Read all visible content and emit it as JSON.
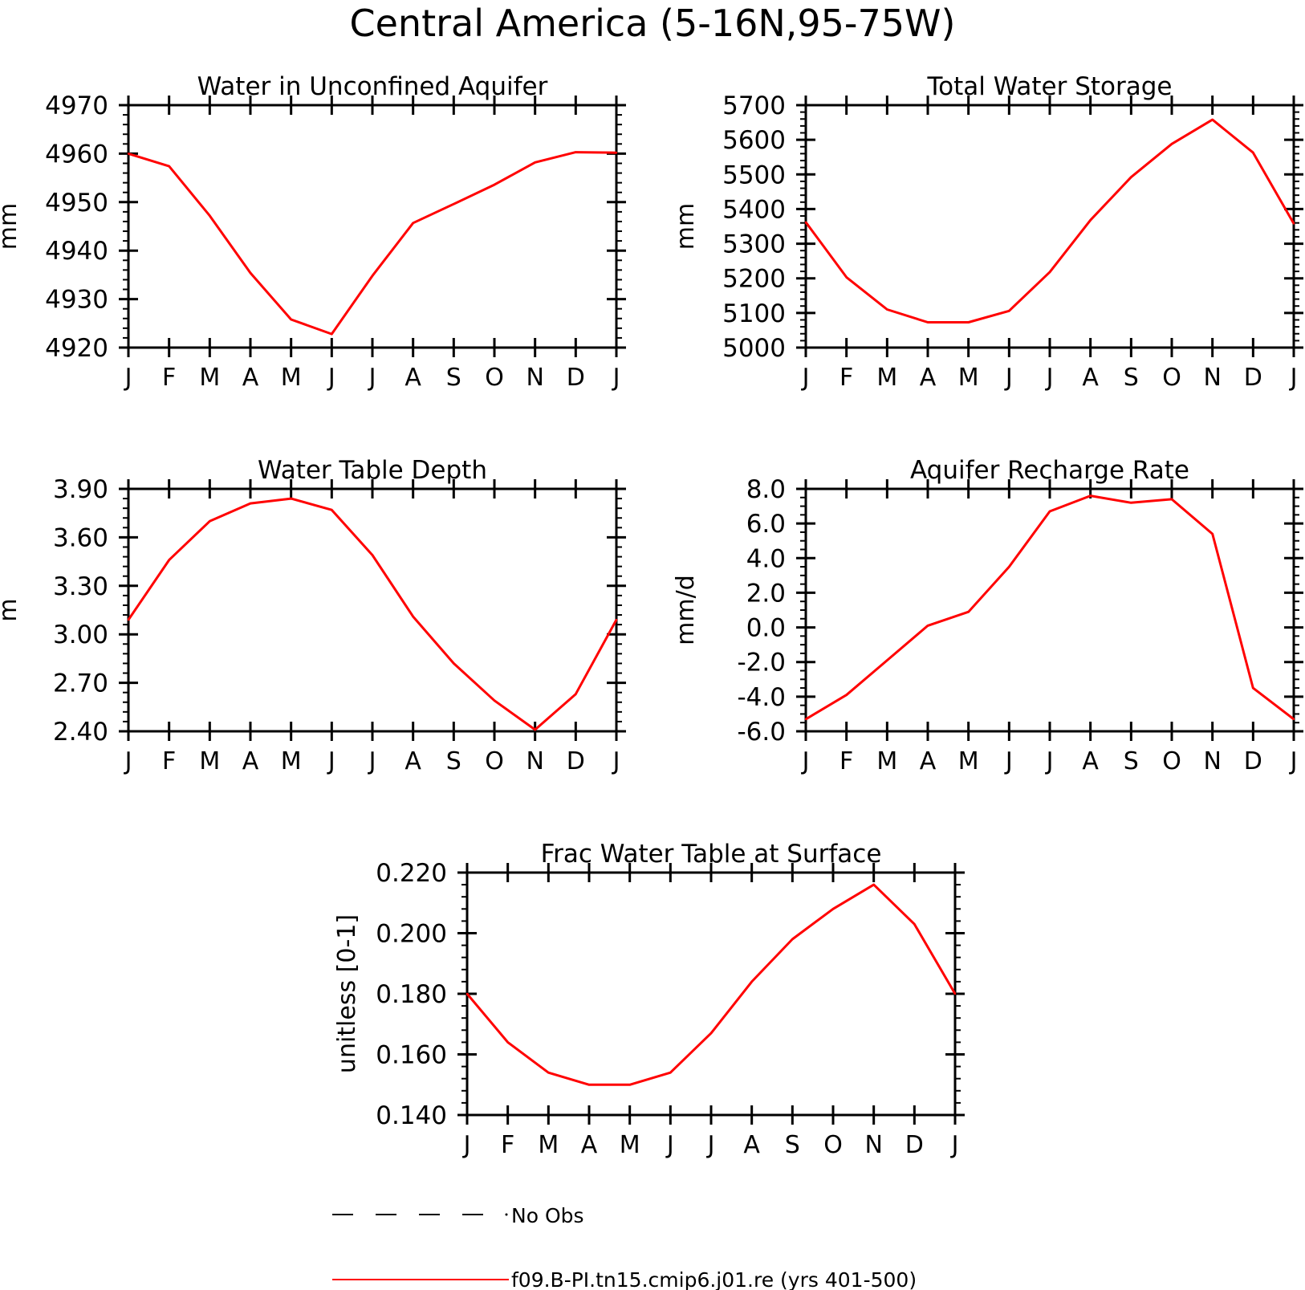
{
  "figure": {
    "title": "Central America (5-16N,95-75W)",
    "legend": [
      {
        "label": "No Obs",
        "style": "dashed",
        "color": "#000000"
      },
      {
        "label": "f09.B-PI.tn15.cmip6.j01.re (yrs 401-500)",
        "style": "solid",
        "color": "#ff0000"
      }
    ]
  },
  "chart_data": [
    {
      "type": "line",
      "title": "Water in Unconfined Aquifer",
      "ylabel": "mm",
      "categories": [
        "J",
        "F",
        "M",
        "A",
        "M",
        "J",
        "J",
        "A",
        "S",
        "O",
        "N",
        "D",
        "J"
      ],
      "ylim": [
        4920,
        4970
      ],
      "yticks": [
        "4920",
        "4930",
        "4940",
        "4950",
        "4960",
        "4970"
      ],
      "yminor_per_major": 5,
      "series": [
        {
          "color": "#ff0000",
          "values": [
            4960.0,
            4957.4,
            4947.2,
            4935.4,
            4925.8,
            4922.8,
            4934.8,
            4945.7,
            4949.6,
            4953.6,
            4958.2,
            4960.3,
            4960.2
          ]
        }
      ]
    },
    {
      "type": "line",
      "title": "Total Water Storage",
      "ylabel": "mm",
      "categories": [
        "J",
        "F",
        "M",
        "A",
        "M",
        "J",
        "J",
        "A",
        "S",
        "O",
        "N",
        "D",
        "J"
      ],
      "ylim": [
        5000,
        5700
      ],
      "yticks": [
        "5000",
        "5100",
        "5200",
        "5300",
        "5400",
        "5500",
        "5600",
        "5700"
      ],
      "yminor_per_major": 5,
      "series": [
        {
          "color": "#ff0000",
          "values": [
            5362,
            5203,
            5110,
            5073,
            5073,
            5106,
            5218,
            5368,
            5492,
            5588,
            5658,
            5563,
            5358
          ]
        }
      ]
    },
    {
      "type": "line",
      "title": "Water Table Depth",
      "ylabel": "m",
      "categories": [
        "J",
        "F",
        "M",
        "A",
        "M",
        "J",
        "J",
        "A",
        "S",
        "O",
        "N",
        "D",
        "J"
      ],
      "ylim": [
        2.4,
        3.9
      ],
      "yticks": [
        "2.40",
        "2.70",
        "3.00",
        "3.30",
        "3.60",
        "3.90"
      ],
      "yminor_per_major": 5,
      "series": [
        {
          "color": "#ff0000",
          "values": [
            3.09,
            3.46,
            3.7,
            3.81,
            3.84,
            3.77,
            3.49,
            3.11,
            2.82,
            2.59,
            2.41,
            2.63,
            3.09
          ]
        }
      ]
    },
    {
      "type": "line",
      "title": "Aquifer Recharge Rate",
      "ylabel": "mm/d",
      "categories": [
        "J",
        "F",
        "M",
        "A",
        "M",
        "J",
        "J",
        "A",
        "S",
        "O",
        "N",
        "D",
        "J"
      ],
      "ylim": [
        -6.0,
        8.0
      ],
      "yticks": [
        "-6.0",
        "-4.0",
        "-2.0",
        "0.0",
        "2.0",
        "4.0",
        "6.0",
        "8.0"
      ],
      "yminor_per_major": 4,
      "series": [
        {
          "color": "#ff0000",
          "values": [
            -5.3,
            -3.9,
            -1.9,
            0.1,
            0.9,
            3.5,
            6.7,
            7.6,
            7.2,
            7.4,
            5.4,
            -3.5,
            -5.3
          ]
        }
      ]
    },
    {
      "type": "line",
      "title": "Frac Water Table at Surface",
      "ylabel": "unitless [0-1]",
      "categories": [
        "J",
        "F",
        "M",
        "A",
        "M",
        "J",
        "J",
        "A",
        "S",
        "O",
        "N",
        "D",
        "J"
      ],
      "ylim": [
        0.14,
        0.22
      ],
      "yticks": [
        "0.140",
        "0.160",
        "0.180",
        "0.200",
        "0.220"
      ],
      "yminor_per_major": 5,
      "series": [
        {
          "color": "#ff0000",
          "values": [
            0.18,
            0.164,
            0.154,
            0.15,
            0.15,
            0.154,
            0.167,
            0.184,
            0.198,
            0.208,
            0.216,
            0.203,
            0.18
          ]
        }
      ]
    }
  ]
}
